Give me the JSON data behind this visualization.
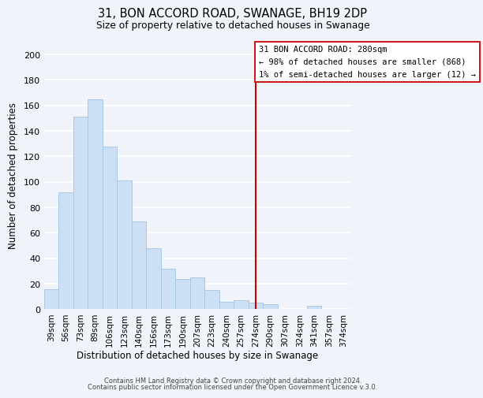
{
  "title": "31, BON ACCORD ROAD, SWANAGE, BH19 2DP",
  "subtitle": "Size of property relative to detached houses in Swanage",
  "xlabel": "Distribution of detached houses by size in Swanage",
  "ylabel": "Number of detached properties",
  "bar_labels": [
    "39sqm",
    "56sqm",
    "73sqm",
    "89sqm",
    "106sqm",
    "123sqm",
    "140sqm",
    "156sqm",
    "173sqm",
    "190sqm",
    "207sqm",
    "223sqm",
    "240sqm",
    "257sqm",
    "274sqm",
    "290sqm",
    "307sqm",
    "324sqm",
    "341sqm",
    "357sqm",
    "374sqm"
  ],
  "bar_values": [
    16,
    92,
    151,
    165,
    128,
    101,
    69,
    48,
    32,
    24,
    25,
    15,
    6,
    7,
    5,
    4,
    0,
    0,
    3,
    0,
    0
  ],
  "bar_color": "#ccdff4",
  "bar_edge_color": "#a8c8e8",
  "vline_x": 14,
  "vline_color": "#cc0000",
  "annotation_title": "31 BON ACCORD ROAD: 280sqm",
  "annotation_line1": "← 98% of detached houses are smaller (868)",
  "annotation_line2": "1% of semi-detached houses are larger (12) →",
  "annotation_box_color": "#ffffff",
  "annotation_box_edge": "#cc0000",
  "ylim": [
    0,
    210
  ],
  "yticks": [
    0,
    20,
    40,
    60,
    80,
    100,
    120,
    140,
    160,
    180,
    200
  ],
  "footer1": "Contains HM Land Registry data © Crown copyright and database right 2024.",
  "footer2": "Contains public sector information licensed under the Open Government Licence v.3.0.",
  "bg_color": "#f0f4fa",
  "grid_color": "#ffffff"
}
